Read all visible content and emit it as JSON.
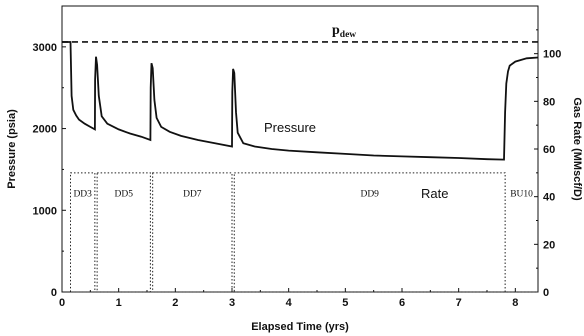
{
  "chart_data": {
    "type": "line",
    "xlabel": "Elapsed Time (yrs)",
    "ylabel": "Pressure (psia)",
    "y2label": "Gas Rate (MMscf/D)",
    "xlim": [
      0,
      8.4
    ],
    "ylim": [
      0,
      3500
    ],
    "y2lim": [
      0,
      120
    ],
    "x_ticks": [
      "0",
      "1",
      "2",
      "3",
      "4",
      "5",
      "6",
      "7",
      "8"
    ],
    "y_ticks": [
      "0",
      "1000",
      "2000",
      "3000"
    ],
    "y2_ticks": [
      "0",
      "20",
      "40",
      "60",
      "80",
      "100"
    ],
    "dew_point": {
      "label_main": "p",
      "label_sub": "dew",
      "y": 3060
    },
    "annotations": {
      "pressure": "Pressure",
      "rate": "Rate"
    },
    "series": [
      {
        "name": "Pressure",
        "x": [
          0,
          0.15,
          0.16,
          0.17,
          0.2,
          0.25,
          0.3,
          0.4,
          0.5,
          0.58,
          0.585,
          0.6,
          0.62,
          0.65,
          0.7,
          0.8,
          1.0,
          1.2,
          1.4,
          1.56,
          1.565,
          1.58,
          1.6,
          1.63,
          1.67,
          1.75,
          1.9,
          2.1,
          2.4,
          2.7,
          3.0,
          3.005,
          3.02,
          3.04,
          3.07,
          3.1,
          3.2,
          3.4,
          3.7,
          4.0,
          4.5,
          5.0,
          5.5,
          6.0,
          6.5,
          7.0,
          7.5,
          7.8,
          7.82,
          7.84,
          7.87,
          7.9,
          8.0,
          8.2,
          8.4
        ],
        "y": [
          3060,
          3060,
          2700,
          2400,
          2230,
          2160,
          2110,
          2060,
          2020,
          1990,
          2600,
          2880,
          2780,
          2400,
          2150,
          2060,
          1990,
          1940,
          1900,
          1860,
          2500,
          2800,
          2740,
          2350,
          2130,
          2020,
          1960,
          1910,
          1860,
          1820,
          1780,
          2450,
          2730,
          2680,
          2200,
          1950,
          1820,
          1780,
          1750,
          1730,
          1710,
          1690,
          1670,
          1660,
          1650,
          1640,
          1625,
          1620,
          2200,
          2550,
          2700,
          2770,
          2820,
          2860,
          2870
        ]
      },
      {
        "name": "Rate",
        "segments": [
          {
            "label": "DD3",
            "x": [
              0.15,
              0.58
            ],
            "rate": 50
          },
          {
            "label": "DD5",
            "x": [
              0.62,
              1.56
            ],
            "rate": 50
          },
          {
            "label": "DD7",
            "x": [
              1.6,
              3.0
            ],
            "rate": 50
          },
          {
            "label": "DD9",
            "x": [
              3.04,
              7.82
            ],
            "rate": 50
          },
          {
            "label": "BU10",
            "x": [
              7.82,
              8.4
            ],
            "rate": 0
          }
        ]
      }
    ]
  }
}
